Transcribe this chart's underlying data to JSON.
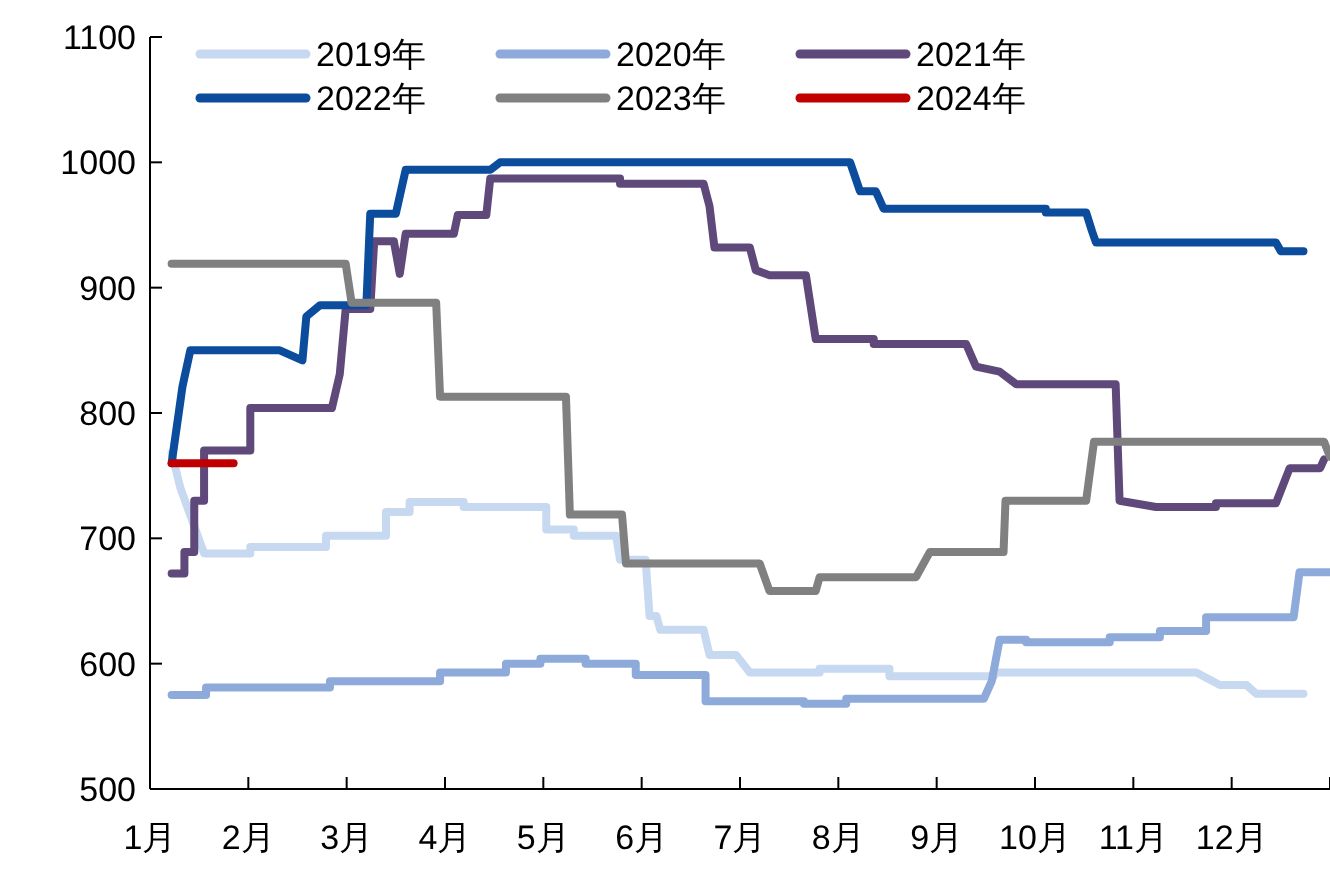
{
  "chart_data": {
    "type": "line",
    "legend": "top",
    "xlim": [
      1,
      13
    ],
    "xticks": [
      {
        "value": 1,
        "label": "1月"
      },
      {
        "value": 2,
        "label": "2月"
      },
      {
        "value": 3,
        "label": "3月"
      },
      {
        "value": 4,
        "label": "4月"
      },
      {
        "value": 5,
        "label": "5月"
      },
      {
        "value": 6,
        "label": "6月"
      },
      {
        "value": 7,
        "label": "7月"
      },
      {
        "value": 8,
        "label": "8月"
      },
      {
        "value": 9,
        "label": "9月"
      },
      {
        "value": 10,
        "label": "10月"
      },
      {
        "value": 11,
        "label": "11月"
      },
      {
        "value": 12,
        "label": "12月"
      },
      {
        "value": 13,
        "label": null
      }
    ],
    "ylim": [
      500,
      1100
    ],
    "yticks": [
      500,
      600,
      700,
      800,
      900,
      1000,
      1100
    ],
    "series": [
      {
        "name": "2019年",
        "color": "#c6d9f1",
        "x": [
          1.22,
          1.31,
          1.55,
          2.02,
          2.02,
          2.79,
          2.79,
          3.4,
          3.4,
          3.64,
          3.64,
          4.19,
          4.19,
          5.03,
          5.03,
          5.31,
          5.31,
          5.74,
          5.78,
          6.04,
          6.08,
          6.15,
          6.19,
          6.63,
          6.69,
          6.96,
          7.1,
          7.81,
          7.81,
          8.52,
          8.52,
          9.58,
          9.58,
          11.64,
          11.88,
          12.15,
          12.25,
          12.73
        ],
        "values": [
          768,
          740,
          688,
          688,
          693,
          693,
          702,
          702,
          721,
          721,
          729,
          729,
          725,
          725,
          707,
          707,
          702,
          702,
          683,
          683,
          638,
          638,
          627,
          627,
          607,
          607,
          593,
          593,
          596,
          596,
          590,
          590,
          593,
          593,
          583,
          583,
          576,
          576
        ]
      },
      {
        "name": "2020年",
        "color": "#8eaadb",
        "x": [
          1.22,
          1.57,
          1.57,
          2.83,
          2.83,
          3.95,
          3.95,
          4.62,
          4.62,
          4.97,
          4.97,
          5.43,
          5.43,
          5.94,
          5.94,
          6.65,
          6.65,
          7.65,
          7.65,
          8.08,
          8.08,
          9.48,
          9.56,
          9.64,
          9.91,
          9.91,
          10.76,
          10.76,
          11.27,
          11.27,
          11.74,
          11.74,
          12.63,
          12.69,
          13.0
        ],
        "values": [
          575,
          575,
          581,
          581,
          586,
          586,
          593,
          593,
          600,
          600,
          604,
          604,
          600,
          600,
          591,
          591,
          570,
          570,
          568,
          568,
          572,
          572,
          586,
          619,
          619,
          617,
          617,
          621,
          621,
          626,
          626,
          637,
          637,
          673,
          673
        ]
      },
      {
        "name": "2021年",
        "color": "#5f497a",
        "x": [
          1.22,
          1.35,
          1.35,
          1.45,
          1.45,
          1.55,
          1.55,
          2.02,
          2.02,
          2.85,
          2.93,
          2.99,
          3.24,
          3.28,
          3.48,
          3.54,
          3.6,
          4.09,
          4.13,
          4.42,
          4.46,
          5.78,
          5.78,
          6.63,
          6.69,
          6.74,
          7.1,
          7.16,
          7.3,
          7.67,
          7.77,
          8.36,
          8.36,
          9.3,
          9.4,
          9.64,
          9.81,
          10.82,
          10.86,
          11.23,
          11.84,
          11.84,
          12.45,
          12.59,
          12.9,
          12.94
        ],
        "values": [
          672,
          672,
          689,
          689,
          730,
          730,
          770,
          770,
          804,
          804,
          831,
          883,
          883,
          937,
          937,
          911,
          943,
          943,
          958,
          958,
          987,
          987,
          983,
          983,
          965,
          932,
          932,
          914,
          910,
          910,
          859,
          859,
          855,
          855,
          837,
          833,
          823,
          823,
          730,
          725,
          725,
          728,
          728,
          756,
          756,
          763
        ]
      },
      {
        "name": "2022年",
        "color": "#0b4c9c",
        "x": [
          1.22,
          1.33,
          1.41,
          2.32,
          2.55,
          2.59,
          2.73,
          3.2,
          3.24,
          3.5,
          3.6,
          4.46,
          4.56,
          8.12,
          8.22,
          8.38,
          8.46,
          10.11,
          10.11,
          10.52,
          10.58,
          10.62,
          12.45,
          12.5,
          12.73
        ],
        "values": [
          760,
          821,
          850,
          850,
          842,
          877,
          886,
          886,
          959,
          959,
          994,
          994,
          1000,
          1000,
          977,
          977,
          963,
          963,
          960,
          960,
          945,
          936,
          936,
          929,
          929
        ]
      },
      {
        "name": "2023年",
        "color": "#808080",
        "x": [
          1.22,
          2.99,
          3.05,
          3.91,
          3.95,
          5.23,
          5.27,
          5.8,
          5.84,
          7.2,
          7.3,
          7.77,
          7.81,
          8.79,
          8.93,
          9.68,
          9.7,
          10.52,
          10.6,
          12.94,
          13.0
        ],
        "values": [
          919,
          919,
          888,
          888,
          813,
          813,
          719,
          719,
          680,
          680,
          658,
          658,
          669,
          669,
          689,
          689,
          730,
          730,
          777,
          777,
          765
        ]
      },
      {
        "name": "2024年",
        "color": "#c00000",
        "x": [
          1.22,
          1.85
        ],
        "values": [
          760,
          760
        ]
      }
    ]
  }
}
